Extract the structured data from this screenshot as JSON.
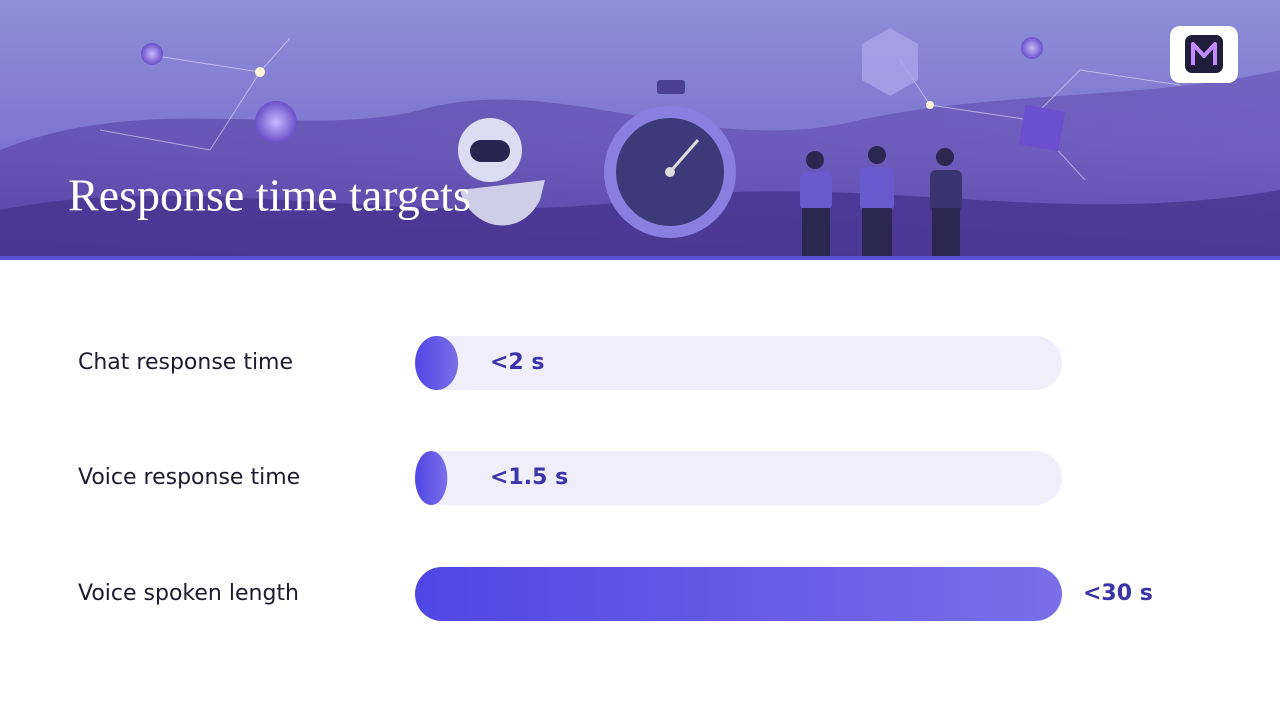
{
  "chart_data": {
    "type": "bar",
    "title": "Response time targets",
    "categories": [
      "Chat response time",
      "Voice response time",
      "Voice spoken length"
    ],
    "values": [
      2,
      1.5,
      30
    ],
    "value_labels": [
      "<2 s",
      "<1.5 s",
      "<30 s"
    ],
    "xlim": [
      0,
      30
    ],
    "color": "#5046e5"
  }
}
